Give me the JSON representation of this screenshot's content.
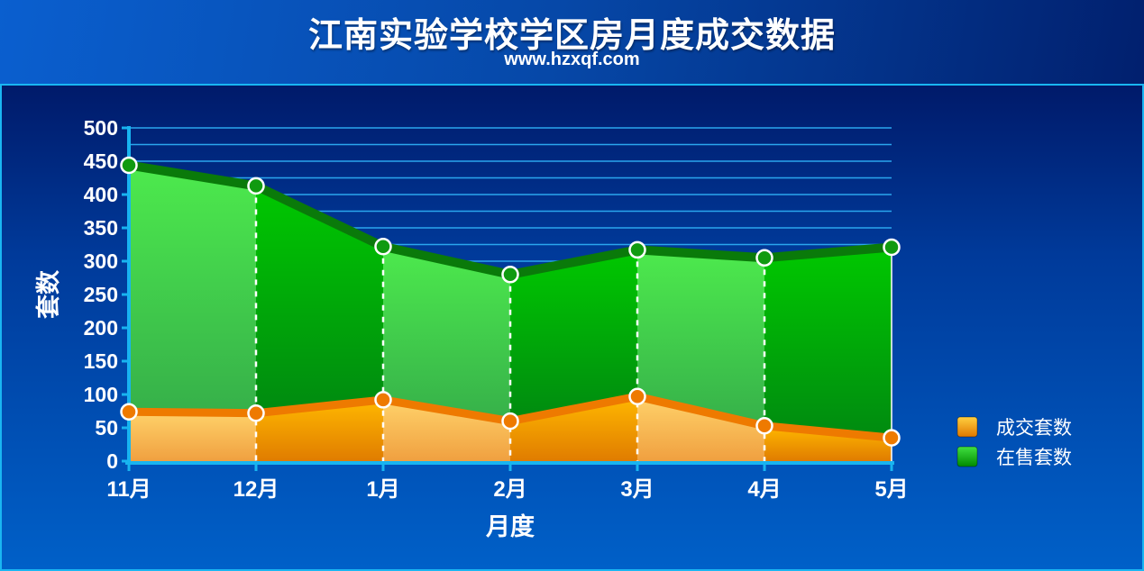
{
  "title": "江南实验学校学区房月度成交数据",
  "subtitle": "www.hzxqf.com",
  "chart_data": {
    "type": "area",
    "categories": [
      "11月",
      "12月",
      "1月",
      "2月",
      "3月",
      "4月",
      "5月"
    ],
    "series": [
      {
        "name": "成交套数",
        "values": [
          74,
          72,
          92,
          60,
          97,
          53,
          35
        ],
        "color": "#f08a00"
      },
      {
        "name": "在售套数",
        "values": [
          444,
          413,
          322,
          280,
          317,
          305,
          321
        ],
        "color": "#0ca40c"
      }
    ],
    "xlabel": "月度",
    "ylabel": "套数",
    "ylim": [
      0,
      500
    ],
    "yticks": [
      0,
      50,
      100,
      150,
      200,
      250,
      300,
      350,
      400,
      450,
      500
    ],
    "grid": true,
    "legend": "right"
  }
}
